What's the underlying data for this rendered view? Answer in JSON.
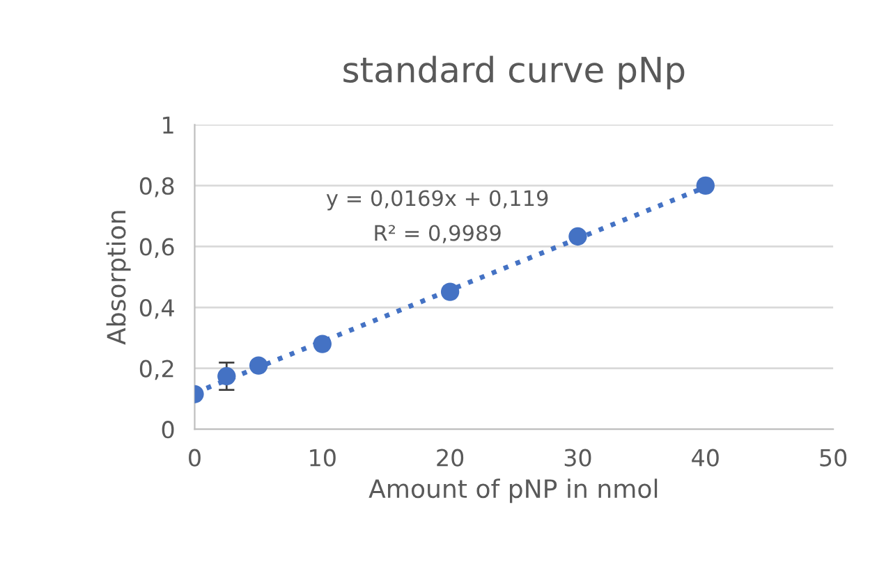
{
  "chart_data": {
    "type": "scatter",
    "title": "standard curve pNp",
    "xlabel": "Amount of pNP in nmol",
    "ylabel": "Absorption",
    "x": [
      0,
      2.5,
      5,
      10,
      20,
      30,
      40
    ],
    "series": [
      {
        "color": "#4472c4",
        "values": [
          0.115,
          0.174,
          0.209,
          0.28,
          0.451,
          0.633,
          0.8
        ],
        "errors": [
          null,
          0.045,
          null,
          null,
          null,
          null,
          null
        ],
        "marker": "circle"
      },
      {
        "type": "line",
        "color": "#4472c4",
        "x": [
          0,
          40
        ],
        "values": [
          0.119,
          0.795
        ],
        "line_style": "dotted",
        "marker": "none"
      }
    ],
    "xlim": [
      0,
      50
    ],
    "xticks": [
      0,
      10,
      20,
      30,
      40,
      50
    ],
    "ylim": [
      0,
      1
    ],
    "yticks": [
      0,
      {
        "value": 0.2,
        "label": "0,2"
      },
      {
        "value": 0.4,
        "label": "0,4"
      },
      {
        "value": 0.6,
        "label": "0,6"
      },
      {
        "value": 0.8,
        "label": "0,8"
      },
      1
    ],
    "grid": "y",
    "legend": false,
    "annotations": [
      "y = 0,0169x + 0,119",
      "R² = 0,9989"
    ]
  }
}
